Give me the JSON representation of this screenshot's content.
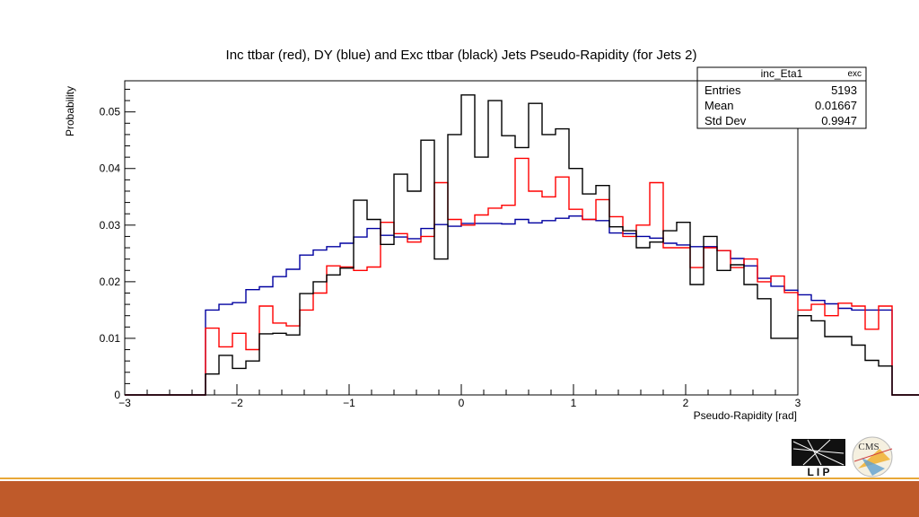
{
  "colors": {
    "inc_ttbar": "#ff0000",
    "dy": "#0000a0",
    "exc_ttbar": "#000000",
    "bottom_bar": "#bf5a2a",
    "bottom_line": "#e8a838"
  },
  "logos": {
    "lip": "L I P",
    "cms": "CMS"
  },
  "chart_data": {
    "type": "histogram",
    "title": "Inc ttbar (red), DY (blue) and Exc ttbar (black) Jets Pseudo-Rapidity (for Jets 2)",
    "xlabel": "Pseudo-Rapidity [rad]",
    "ylabel": "Probability",
    "xlim": [
      -3,
      3
    ],
    "ylim": [
      0,
      0.0555
    ],
    "x_ticks": [
      -3,
      -2,
      -1,
      0,
      1,
      2,
      3
    ],
    "x_tick_labels": [
      "−3",
      "−2",
      "−1",
      "0",
      "1",
      "2",
      "3"
    ],
    "y_ticks": [
      0,
      0.01,
      0.02,
      0.03,
      0.04,
      0.05
    ],
    "y_tick_labels": [
      "0",
      "0.01",
      "0.02",
      "0.03",
      "0.04",
      "0.05"
    ],
    "bin_edges_start": -3,
    "bin_width": 0.12,
    "stats_box": {
      "title": "inc_Eta1",
      "option": "exc",
      "rows": [
        {
          "label": "Entries",
          "value": "5193"
        },
        {
          "label": "Mean",
          "value": "0.01667"
        },
        {
          "label": "Std Dev",
          "value": "0.9947"
        }
      ]
    },
    "series": [
      {
        "key": "dy",
        "values": [
          0,
          0,
          0,
          0,
          0,
          0,
          0.015,
          0.016,
          0.0163,
          0.0186,
          0.0191,
          0.0209,
          0.0222,
          0.0247,
          0.0256,
          0.0262,
          0.0268,
          0.0279,
          0.0294,
          0.0282,
          0.0279,
          0.0276,
          0.0294,
          0.0301,
          0.0298,
          0.0303,
          0.0303,
          0.0303,
          0.0302,
          0.031,
          0.0304,
          0.0308,
          0.0312,
          0.0316,
          0.031,
          0.0308,
          0.0286,
          0.0285,
          0.028,
          0.0277,
          0.0268,
          0.0265,
          0.0262,
          0.0262,
          0.0255,
          0.0241,
          0.0228,
          0.0206,
          0.0192,
          0.0185,
          0.0177,
          0.0167,
          0.0161,
          0.0153,
          0.015,
          0.015,
          0.015,
          0,
          0,
          0,
          0,
          0,
          0,
          0,
          0,
          0,
          0,
          0,
          0,
          0
        ]
      },
      {
        "key": "inc_ttbar",
        "values": [
          0,
          0,
          0,
          0,
          0,
          0,
          0.0118,
          0.0085,
          0.0109,
          0.008,
          0.0157,
          0.0127,
          0.0122,
          0.015,
          0.018,
          0.0228,
          0.0226,
          0.022,
          0.0226,
          0.0305,
          0.0285,
          0.027,
          0.028,
          0.0375,
          0.031,
          0.03,
          0.0318,
          0.033,
          0.0335,
          0.0418,
          0.036,
          0.035,
          0.0385,
          0.0328,
          0.031,
          0.0345,
          0.0315,
          0.028,
          0.03,
          0.0375,
          0.026,
          0.026,
          0.0225,
          0.026,
          0.0255,
          0.0225,
          0.024,
          0.02,
          0.021,
          0.0181,
          0.015,
          0.016,
          0.014,
          0.0162,
          0.0157,
          0.0116,
          0.0157,
          0,
          0,
          0,
          0,
          0,
          0,
          0,
          0,
          0,
          0,
          0,
          0,
          0
        ]
      },
      {
        "key": "exc_ttbar",
        "values": [
          0,
          0,
          0,
          0,
          0,
          0,
          0.0037,
          0.007,
          0.0047,
          0.006,
          0.0108,
          0.0109,
          0.0106,
          0.0179,
          0.02,
          0.0212,
          0.0224,
          0.0344,
          0.031,
          0.0266,
          0.039,
          0.036,
          0.045,
          0.024,
          0.046,
          0.053,
          0.042,
          0.052,
          0.0458,
          0.0437,
          0.0515,
          0.046,
          0.047,
          0.04,
          0.0355,
          0.037,
          0.0297,
          0.029,
          0.026,
          0.027,
          0.029,
          0.0305,
          0.0195,
          0.028,
          0.022,
          0.023,
          0.0195,
          0.017,
          0.01,
          0.01,
          0.014,
          0.0131,
          0.0103,
          0.0103,
          0.0088,
          0.0061,
          0.0051,
          0,
          0,
          0,
          0,
          0,
          0,
          0,
          0,
          0,
          0,
          0,
          0,
          0
        ]
      }
    ]
  }
}
